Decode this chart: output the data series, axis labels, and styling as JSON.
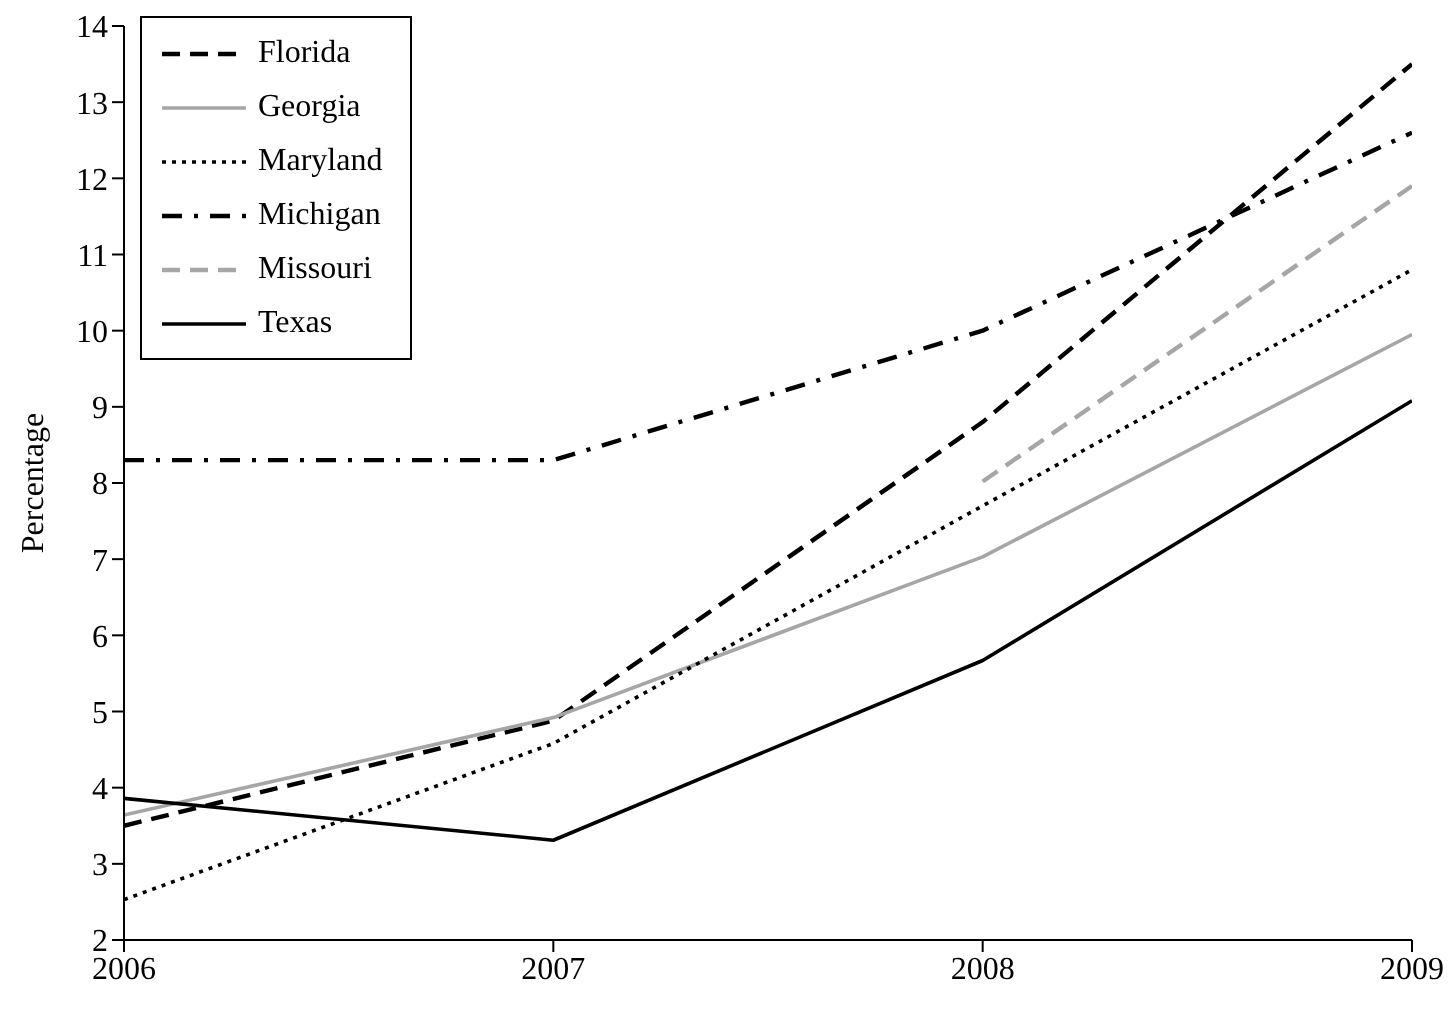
{
  "chart_data": {
    "type": "line",
    "ylabel": "Percentage",
    "x": [
      2006,
      2007,
      2008,
      2009
    ],
    "xlim": [
      2006,
      2009
    ],
    "xticks": [
      2006,
      2007,
      2008,
      2009
    ],
    "ylim": [
      2,
      14
    ],
    "yticks": [
      2,
      3,
      4,
      5,
      6,
      7,
      8,
      9,
      10,
      11,
      12,
      13,
      14
    ],
    "grid": false,
    "legend": "top left",
    "marker": "none",
    "series": [
      {
        "name": "Florida",
        "color": "#000000",
        "line_style": "dashed",
        "values": [
          3.5,
          4.88,
          8.8,
          13.5
        ]
      },
      {
        "name": "Georgia",
        "color": "#a6a6a6",
        "line_style": "solid",
        "values": [
          3.64,
          4.92,
          7.03,
          9.95
        ]
      },
      {
        "name": "Maryland",
        "color": "#000000",
        "line_style": "dotted",
        "values": [
          2.53,
          4.58,
          7.7,
          10.8
        ]
      },
      {
        "name": "Michigan",
        "color": "#000000",
        "line_style": "dashdot",
        "values": [
          8.3,
          8.3,
          10.0,
          12.6
        ]
      },
      {
        "name": "Missouri",
        "color": "#a6a6a6",
        "line_style": "dashed",
        "values": [
          null,
          null,
          8.02,
          11.9
        ]
      },
      {
        "name": "Texas",
        "color": "#000000",
        "line_style": "solid",
        "values": [
          3.86,
          3.31,
          5.67,
          9.08
        ]
      }
    ]
  }
}
